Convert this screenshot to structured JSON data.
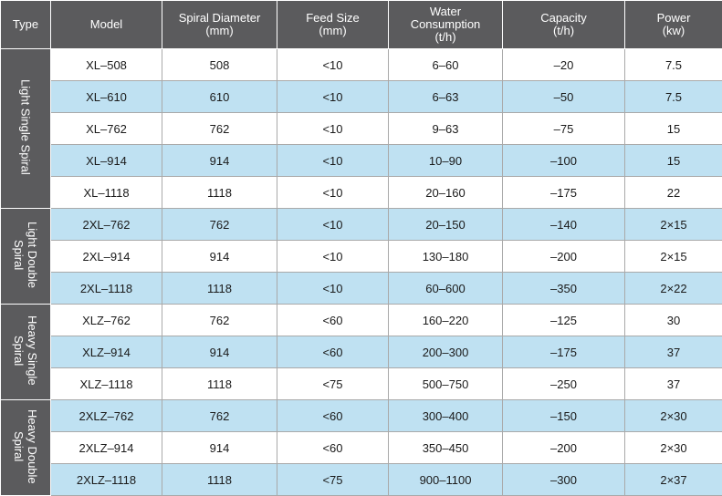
{
  "headers": {
    "type": "Type",
    "model": "Model",
    "spiral_diameter": "Spiral Diameter\n(mm)",
    "feed_size": "Feed Size\n(mm)",
    "water_consumption": "Water\nConsumption\n(t/h)",
    "capacity": "Capacity\n(t/h)",
    "power": "Power\n(kw)"
  },
  "groups": [
    {
      "label": "Light Single Spiral",
      "rows": [
        {
          "model": "XL–508",
          "diameter": "508",
          "feed": "<10",
          "water": "6–60",
          "capacity": "–20",
          "power": "7.5"
        },
        {
          "model": "XL–610",
          "diameter": "610",
          "feed": "<10",
          "water": "6–63",
          "capacity": "–50",
          "power": "7.5"
        },
        {
          "model": "XL–762",
          "diameter": "762",
          "feed": "<10",
          "water": "9–63",
          "capacity": "–75",
          "power": "15"
        },
        {
          "model": "XL–914",
          "diameter": "914",
          "feed": "<10",
          "water": "10–90",
          "capacity": "–100",
          "power": "15"
        },
        {
          "model": "XL–1118",
          "diameter": "1118",
          "feed": "<10",
          "water": "20–160",
          "capacity": "–175",
          "power": "22"
        }
      ]
    },
    {
      "label": "Light Double\nSpiral",
      "rows": [
        {
          "model": "2XL–762",
          "diameter": "762",
          "feed": "<10",
          "water": "20–150",
          "capacity": "–140",
          "power": "2×15"
        },
        {
          "model": "2XL–914",
          "diameter": "914",
          "feed": "<10",
          "water": "130–180",
          "capacity": "–200",
          "power": "2×15"
        },
        {
          "model": "2XL–1118",
          "diameter": "1118",
          "feed": "<10",
          "water": "60–600",
          "capacity": "–350",
          "power": "2×22"
        }
      ]
    },
    {
      "label": "Heavy Single\nSpiral",
      "rows": [
        {
          "model": "XLZ–762",
          "diameter": "762",
          "feed": "<60",
          "water": "160–220",
          "capacity": "–125",
          "power": "30"
        },
        {
          "model": "XLZ–914",
          "diameter": "914",
          "feed": "<60",
          "water": "200–300",
          "capacity": "–175",
          "power": "37"
        },
        {
          "model": "XLZ–1118",
          "diameter": "1118",
          "feed": "<75",
          "water": "500–750",
          "capacity": "–250",
          "power": "37"
        }
      ]
    },
    {
      "label": "Heavy Double\nSpiral",
      "rows": [
        {
          "model": "2XLZ–762",
          "diameter": "762",
          "feed": "<60",
          "water": "300–400",
          "capacity": "–150",
          "power": "2×30"
        },
        {
          "model": "2XLZ–914",
          "diameter": "914",
          "feed": "<60",
          "water": "350–450",
          "capacity": "–200",
          "power": "2×30"
        },
        {
          "model": "2XLZ–1118",
          "diameter": "1118",
          "feed": "<75",
          "water": "900–1100",
          "capacity": "–300",
          "power": "2×37"
        }
      ]
    }
  ],
  "colors": {
    "header_bg": "#5b5b5d",
    "header_text": "#ffffff",
    "row_blue": "#bfe1f2",
    "row_white": "#ffffff",
    "grid_line": "#a9a9a9"
  }
}
